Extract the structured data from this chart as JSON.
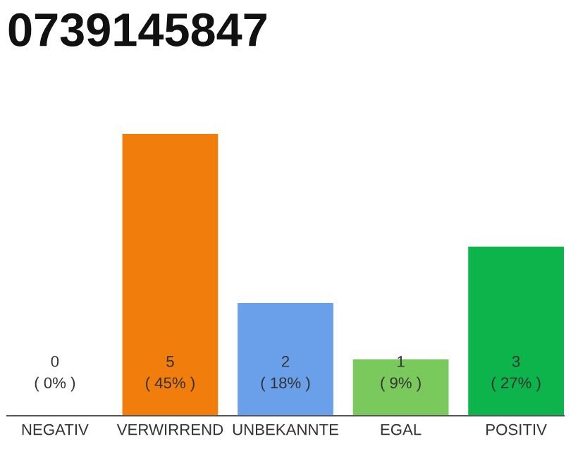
{
  "chart_data": {
    "type": "bar",
    "title": "0739145847",
    "categories": [
      "NEGATIV",
      "VERWIRREND",
      "UNBEKANNTE",
      "EGAL",
      "POSITIV"
    ],
    "values": [
      0,
      5,
      2,
      1,
      3
    ],
    "colors": [
      "#999999",
      "#f07d0c",
      "#6a9fea",
      "#7ac95c",
      "#0db34b"
    ],
    "value_labels": [
      "0\n( 0% )",
      "5\n( 45% )",
      "2\n( 18% )",
      "1\n( 9% )",
      "3\n( 27% )"
    ],
    "grid": false,
    "legend": false
  }
}
